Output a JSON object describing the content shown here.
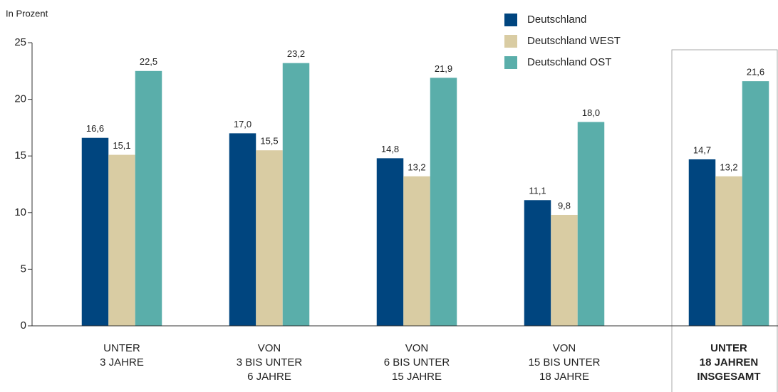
{
  "chart_data": {
    "type": "bar",
    "y_label": "In Prozent",
    "categories": [
      [
        "UNTER",
        "3 JAHRE"
      ],
      [
        "VON",
        "3 BIS UNTER",
        "6 JAHRE"
      ],
      [
        "VON",
        "6 BIS UNTER",
        "15 JAHRE"
      ],
      [
        "VON",
        "15 BIS UNTER",
        "18 JAHRE"
      ],
      [
        "UNTER",
        "18 JAHREN",
        "INSGESAMT"
      ]
    ],
    "series": [
      {
        "name": "Deutschland",
        "color": "#00457f",
        "values": [
          16.6,
          17.0,
          14.8,
          11.1,
          14.7
        ],
        "value_labels": [
          "16,6",
          "17,0",
          "14,8",
          "11,1",
          "14,7"
        ]
      },
      {
        "name": "Deutschland WEST",
        "color": "#d9cca3",
        "values": [
          15.1,
          15.5,
          13.2,
          9.8,
          13.2
        ],
        "value_labels": [
          "15,1",
          "15,5",
          "13,2",
          "9,8",
          "13,2"
        ]
      },
      {
        "name": "Deutschland OST",
        "color": "#5aaeaa",
        "values": [
          22.5,
          23.2,
          21.9,
          18.0,
          21.6
        ],
        "value_labels": [
          "22,5",
          "23,2",
          "21,9",
          "18,0",
          "21,6"
        ]
      }
    ],
    "ylim": [
      0,
      25
    ],
    "yticks": [
      0,
      5,
      10,
      15,
      20,
      25
    ],
    "highlight_category": 4,
    "legend": "top"
  }
}
